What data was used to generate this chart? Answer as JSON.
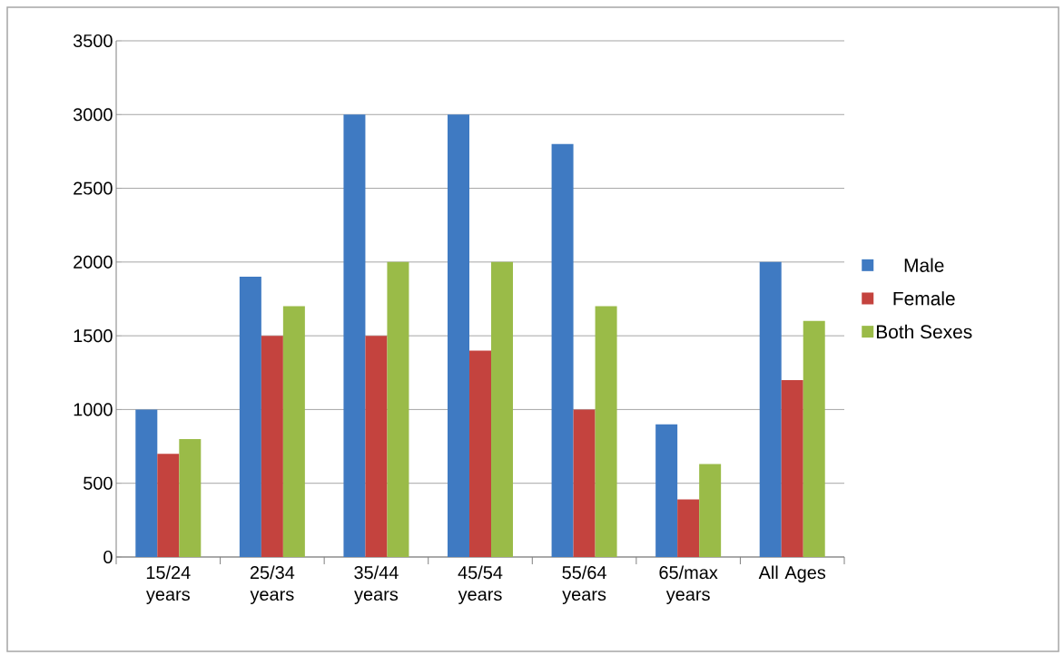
{
  "chart_data": {
    "type": "bar",
    "categories": [
      "15/24 years",
      "25/34 years",
      "35/44 years",
      "45/54 years",
      "55/64 years",
      "65/max years",
      "All Ages"
    ],
    "series": [
      {
        "name": "Male",
        "color": "#3f7ac2",
        "values": [
          1000,
          1900,
          3000,
          3000,
          2800,
          900,
          2000
        ]
      },
      {
        "name": "Female",
        "color": "#c4433e",
        "values": [
          700,
          1500,
          1500,
          1400,
          1000,
          390,
          1200
        ]
      },
      {
        "name": "Both Sexes",
        "color": "#9abb48",
        "values": [
          800,
          1700,
          2000,
          2000,
          1700,
          630,
          1600
        ]
      }
    ],
    "ylim": [
      0,
      3500
    ],
    "yticks": [
      0,
      500,
      1000,
      1500,
      2000,
      2500,
      3000,
      3500
    ],
    "grid": "y",
    "legend": "right"
  }
}
